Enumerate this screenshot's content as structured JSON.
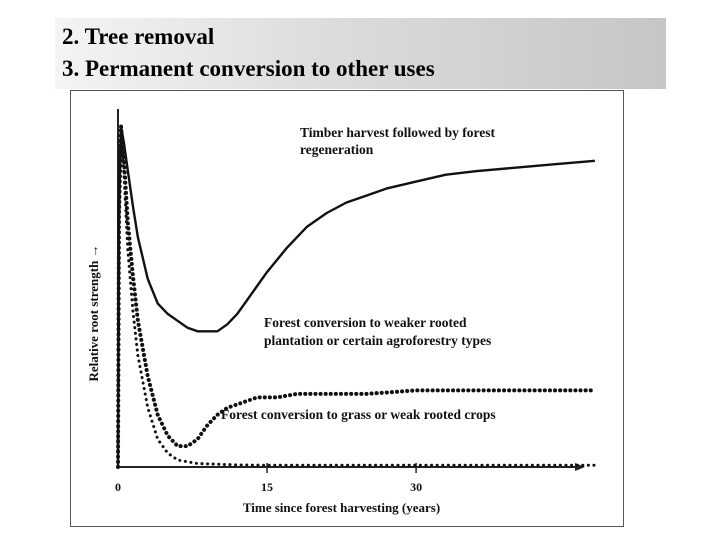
{
  "header": {
    "line1": "2. Tree removal",
    "line2": "3. Permanent conversion to other uses"
  },
  "chart_data": {
    "type": "line",
    "title": "",
    "xlabel": "Time since forest harvesting (years)",
    "ylabel": "Relative root strength",
    "ylabel_arrow": "→",
    "x_ticks": [
      "0",
      "15",
      "30"
    ],
    "x_tick_values": [
      0,
      15,
      30
    ],
    "xlim": [
      0,
      47
    ],
    "ylim": [
      0,
      1
    ],
    "y_tick_labels": false,
    "grid": false,
    "legend": "inline labels",
    "colors": {
      "curves": "#111111",
      "axes": "#222222"
    },
    "series": [
      {
        "name": "Timber harvest followed by forest regeneration",
        "label_lines": [
          "Timber harvest followed by forest",
          "regeneration"
        ],
        "style": "solid",
        "x": [
          0,
          0.1,
          0.3,
          0.6,
          1,
          1.5,
          2,
          3,
          4,
          5,
          6,
          7,
          8,
          9,
          10,
          11,
          12,
          13,
          14,
          15,
          17,
          19,
          21,
          23,
          25,
          27,
          30,
          33,
          36,
          40,
          44,
          48
        ],
        "y": [
          0.0,
          0.72,
          0.98,
          0.93,
          0.85,
          0.75,
          0.66,
          0.54,
          0.47,
          0.44,
          0.42,
          0.4,
          0.39,
          0.39,
          0.39,
          0.41,
          0.44,
          0.48,
          0.52,
          0.56,
          0.63,
          0.69,
          0.73,
          0.76,
          0.78,
          0.8,
          0.82,
          0.84,
          0.85,
          0.86,
          0.87,
          0.88
        ]
      },
      {
        "name": "Forest conversion to weaker rooted plantation or certain agroforestry types",
        "label_lines": [
          "Forest conversion to weaker rooted",
          "plantation or certain agroforestry types"
        ],
        "style": "heavy-dotted",
        "x": [
          0,
          0.1,
          0.3,
          0.6,
          1,
          1.5,
          2,
          3,
          4,
          5,
          6,
          7,
          8,
          9,
          10,
          11,
          12,
          13,
          14,
          16,
          18,
          20,
          25,
          30,
          35,
          40,
          44,
          48
        ],
        "y": [
          0.0,
          0.72,
          0.98,
          0.88,
          0.7,
          0.55,
          0.42,
          0.26,
          0.15,
          0.09,
          0.06,
          0.06,
          0.08,
          0.12,
          0.15,
          0.17,
          0.18,
          0.19,
          0.2,
          0.2,
          0.21,
          0.21,
          0.21,
          0.22,
          0.22,
          0.22,
          0.22,
          0.22
        ]
      },
      {
        "name": "Forest conversion to grass or weak rooted crops",
        "label_lines": [
          "Forest conversion to grass or weak rooted crops"
        ],
        "style": "light-dotted",
        "x": [
          0,
          0.1,
          0.3,
          0.6,
          1,
          1.5,
          2,
          3,
          4,
          5,
          6,
          7,
          8,
          10,
          12,
          15,
          20,
          25,
          30,
          35,
          40,
          44,
          48
        ],
        "y": [
          0.0,
          0.72,
          0.98,
          0.84,
          0.62,
          0.45,
          0.32,
          0.17,
          0.08,
          0.04,
          0.02,
          0.015,
          0.01,
          0.008,
          0.006,
          0.005,
          0.005,
          0.005,
          0.005,
          0.005,
          0.005,
          0.005,
          0.005
        ]
      }
    ]
  }
}
